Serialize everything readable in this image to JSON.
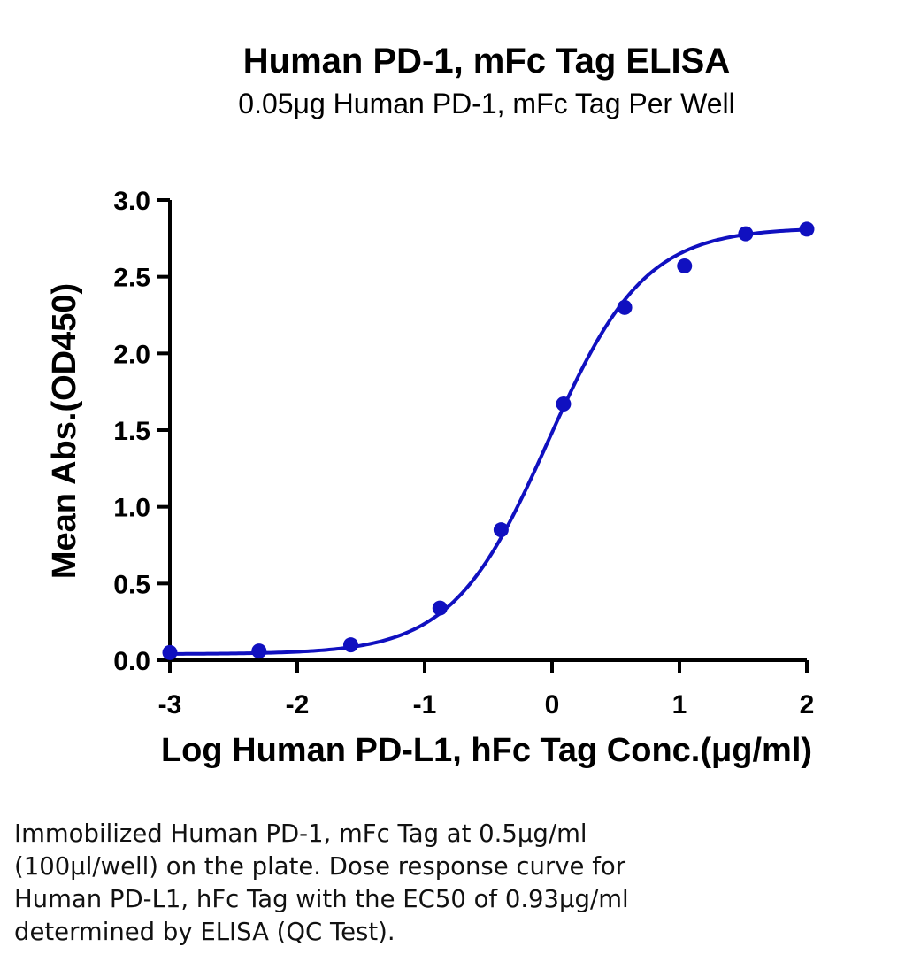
{
  "chart_data": {
    "type": "scatter",
    "title": "Human PD-1, mFc Tag ELISA",
    "subtitle": "0.05μg Human PD-1, mFc Tag Per Well",
    "xlabel": "Log Human PD-L1, hFc Tag Conc.(μg/ml)",
    "ylabel": "Mean Abs.(OD450)",
    "xlim": [
      -3,
      2
    ],
    "ylim": [
      0,
      3.0
    ],
    "x_ticks": [
      -3,
      -2,
      -1,
      0,
      1,
      2
    ],
    "x_tick_labels": [
      "-3",
      "-2",
      "-1",
      "0",
      "1",
      "2"
    ],
    "y_ticks": [
      0,
      0.5,
      1.0,
      1.5,
      2.0,
      2.5,
      3.0
    ],
    "y_tick_labels": [
      "0.0",
      "0.5",
      "1.0",
      "1.5",
      "2.0",
      "2.5",
      "3.0"
    ],
    "series": [
      {
        "color": "#1010c0",
        "x": [
          -3.0,
          -2.3,
          -1.58,
          -0.88,
          -0.4,
          0.09,
          0.57,
          1.04,
          1.52,
          2.0
        ],
        "y": [
          0.05,
          0.06,
          0.1,
          0.34,
          0.85,
          1.67,
          2.3,
          2.57,
          2.78,
          2.81
        ]
      }
    ],
    "fit_curve": {
      "model": "4PL",
      "bottom": 0.04,
      "top": 2.82,
      "logEC50": -0.03,
      "hill": 1.15
    },
    "grid": false,
    "legend": "none"
  },
  "caption": "Immobilized Human PD-1, mFc Tag at 0.5μg/ml\n(100μl/well) on the plate. Dose response curve for\nHuman PD-L1, hFc Tag with the EC50 of 0.93μg/ml\ndetermined by ELISA (QC Test)."
}
